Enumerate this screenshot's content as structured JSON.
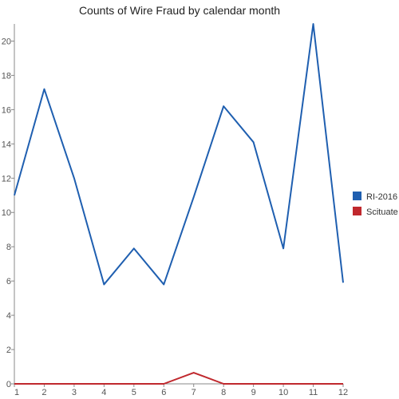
{
  "chart_data": {
    "type": "line",
    "title": "Counts of Wire Fraud by calendar month",
    "xlabel": "",
    "ylabel": "",
    "x": [
      1,
      2,
      3,
      4,
      5,
      6,
      7,
      8,
      9,
      10,
      11,
      12
    ],
    "x_ticks": [
      "1",
      "2",
      "3",
      "4",
      "5",
      "6",
      "7",
      "8",
      "9",
      "10",
      "11",
      "12"
    ],
    "y_ticks": [
      "0",
      "2",
      "4",
      "6",
      "8",
      "10",
      "12",
      "14",
      "16",
      "18",
      "20"
    ],
    "ylim": [
      0,
      21
    ],
    "grid": false,
    "legend_position": "right",
    "series": [
      {
        "name": "RI-2016",
        "color": "#1f5fb0",
        "values": [
          11,
          17.2,
          12,
          5.8,
          7.9,
          5.8,
          10.9,
          16.2,
          14.1,
          7.9,
          21,
          5.9
        ]
      },
      {
        "name": "Scituate",
        "color": "#c0282d",
        "values": [
          0,
          0,
          0,
          0,
          0,
          0,
          0.65,
          0,
          0,
          0,
          0,
          0
        ]
      }
    ]
  }
}
